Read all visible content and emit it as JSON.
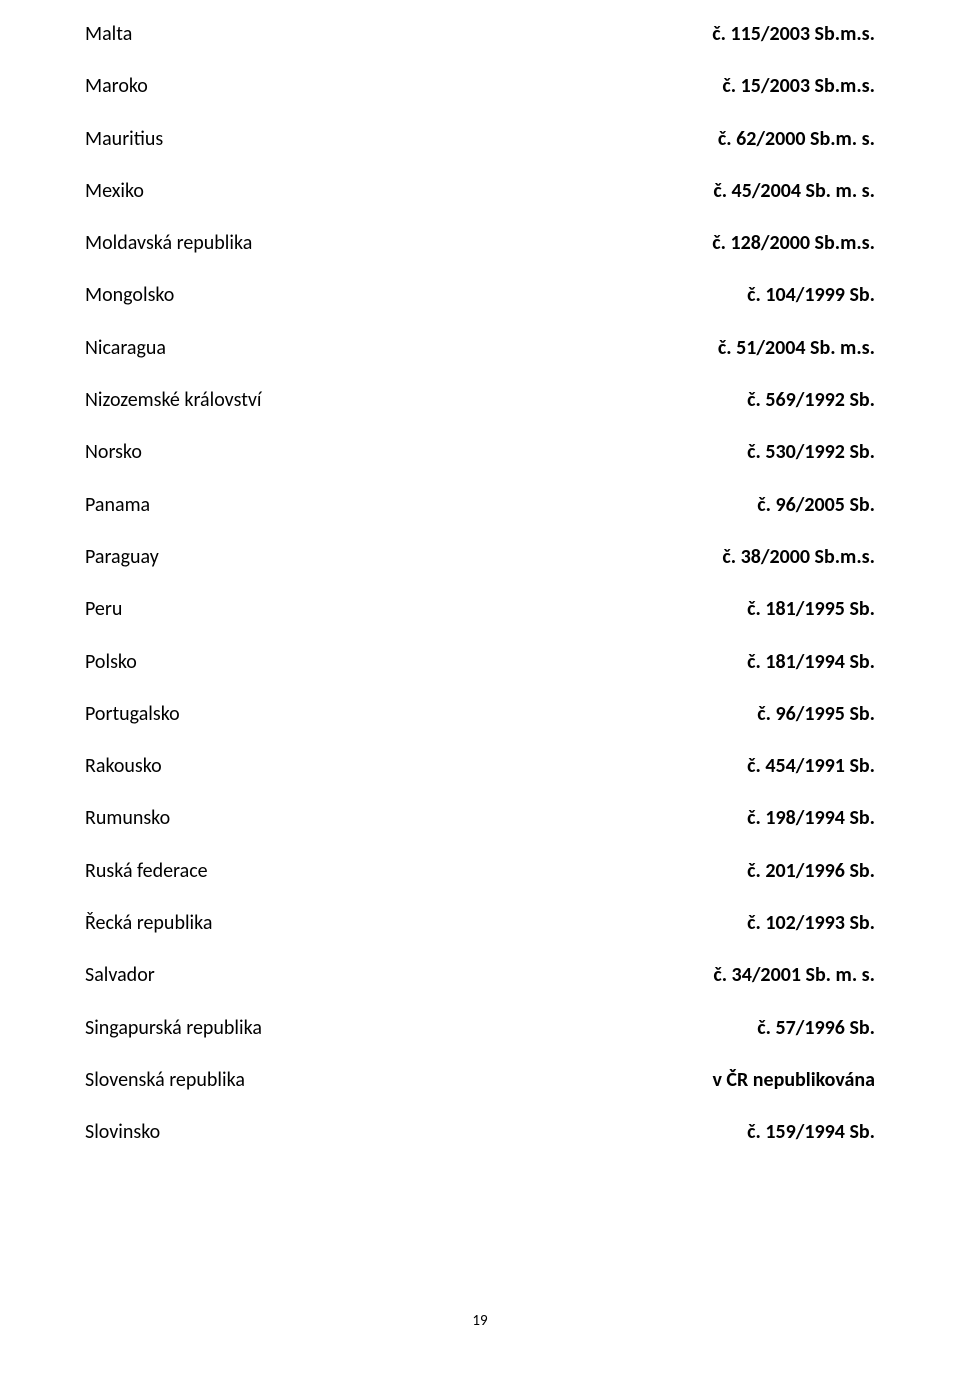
{
  "rows": [
    {
      "country": "Malta",
      "ref": "č. 115/2003 Sb.m.s."
    },
    {
      "country": "Maroko",
      "ref": "č. 15/2003 Sb.m.s."
    },
    {
      "country": "Mauritius",
      "ref": "č. 62/2000 Sb.m. s."
    },
    {
      "country": "Mexiko",
      "ref": "č. 45/2004 Sb. m. s."
    },
    {
      "country": "Moldavská republika",
      "ref": "č. 128/2000 Sb.m.s."
    },
    {
      "country": "Mongolsko",
      "ref": "č. 104/1999 Sb."
    },
    {
      "country": "Nicaragua",
      "ref": "č. 51/2004 Sb. m.s."
    },
    {
      "country": "Nizozemské království",
      "ref": "č. 569/1992 Sb."
    },
    {
      "country": "Norsko",
      "ref": "č. 530/1992 Sb."
    },
    {
      "country": "Panama",
      "ref": "č. 96/2005 Sb."
    },
    {
      "country": "Paraguay",
      "ref": "č. 38/2000 Sb.m.s."
    },
    {
      "country": "Peru",
      "ref": "č. 181/1995 Sb."
    },
    {
      "country": "Polsko",
      "ref": "č. 181/1994 Sb."
    },
    {
      "country": "Portugalsko",
      "ref": "č. 96/1995 Sb."
    },
    {
      "country": "Rakousko",
      "ref": "č. 454/1991 Sb."
    },
    {
      "country": "Rumunsko",
      "ref": "č. 198/1994 Sb."
    },
    {
      "country": "Ruská federace",
      "ref": "č. 201/1996 Sb."
    },
    {
      "country": "Řecká republika",
      "ref": "č. 102/1993 Sb."
    },
    {
      "country": "Salvador",
      "ref": "č. 34/2001 Sb. m. s."
    },
    {
      "country": "Singapurská republika",
      "ref": "č. 57/1996 Sb."
    },
    {
      "country": "Slovenská republika",
      "ref": "v ČR nepublikována"
    },
    {
      "country": "Slovinsko",
      "ref": "č. 159/1994 Sb."
    }
  ],
  "pageNumber": "19"
}
